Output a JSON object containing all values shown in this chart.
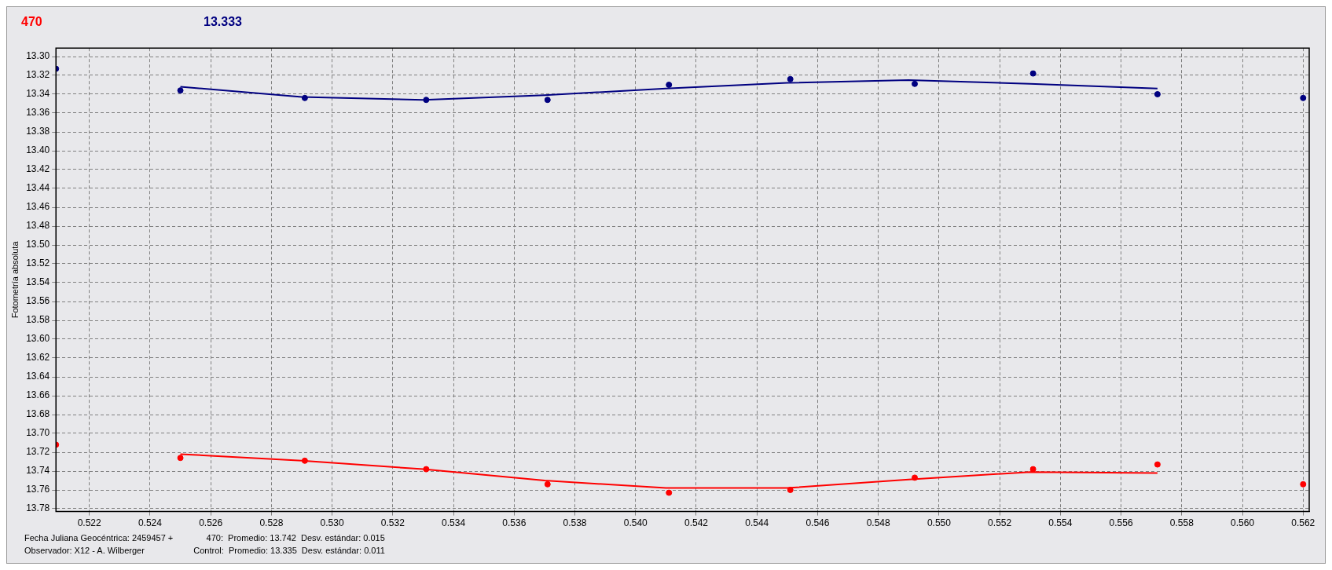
{
  "chart_data": {
    "type": "scatter",
    "ylabel": "Fotometría absoluta",
    "annotations": [
      "Fecha Juliana Geocéntrica: 2459457 +",
      "Observador: X12 - A. Wilberger",
      "470:  Promedio: 13.742  Desv. estándar: 0.015",
      "Control:  Promedio: 13.335  Desv. estándar: 0.011"
    ],
    "x": [
      0.5209,
      0.525,
      0.5291,
      0.5331,
      0.5371,
      0.5411,
      0.5451,
      0.5492,
      0.5531,
      0.5572,
      0.562
    ],
    "series": [
      {
        "name": "470",
        "marker": "circle",
        "color": "#ff0000",
        "values": [
          13.712,
          13.726,
          13.729,
          13.738,
          13.754,
          13.763,
          13.76,
          13.747,
          13.738,
          13.733,
          13.754
        ]
      },
      {
        "name": "13.333",
        "marker": "circle",
        "color": "#000080",
        "values": [
          13.313,
          13.336,
          13.344,
          13.346,
          13.346,
          13.33,
          13.324,
          13.329,
          13.318,
          13.34,
          13.344
        ]
      },
      {
        "type": "line",
        "color": "#ff0000",
        "x": [
          0.525,
          0.529,
          0.533,
          0.537,
          0.541,
          0.545,
          0.549,
          0.553,
          0.5572
        ],
        "values": [
          13.722,
          13.729,
          13.738,
          13.75,
          13.758,
          13.758,
          13.749,
          13.741,
          13.742
        ]
      },
      {
        "type": "line",
        "color": "#000080",
        "x": [
          0.525,
          0.529,
          0.533,
          0.537,
          0.541,
          0.545,
          0.549,
          0.553,
          0.5572
        ],
        "values": [
          13.332,
          13.343,
          13.346,
          13.341,
          13.334,
          13.328,
          13.325,
          13.329,
          13.334
        ]
      }
    ],
    "xlim": [
      0.5209,
      0.5622
    ],
    "ylim": [
      13.783,
      13.291
    ],
    "xticks": [
      0.522,
      0.524,
      0.526,
      0.528,
      {
        "value": 0.53,
        "label": "0.530"
      },
      0.532,
      0.534,
      0.536,
      0.538,
      {
        "value": 0.54,
        "label": "0.540"
      },
      0.542,
      0.544,
      0.546,
      0.548,
      {
        "value": 0.55,
        "label": "0.550"
      },
      0.552,
      0.554,
      0.556,
      0.558,
      {
        "value": 0.56,
        "label": "0.560"
      },
      0.562
    ],
    "yticks": [
      {
        "value": 13.3,
        "label": "13.30"
      },
      13.32,
      13.34,
      13.36,
      13.38,
      {
        "value": 13.4,
        "label": "13.40"
      },
      13.42,
      13.44,
      13.46,
      13.48,
      {
        "value": 13.5,
        "label": "13.50"
      },
      13.52,
      13.54,
      13.56,
      13.58,
      {
        "value": 13.6,
        "label": "13.60"
      },
      13.62,
      13.64,
      13.66,
      13.68,
      {
        "value": 13.7,
        "label": "13.70"
      },
      13.72,
      13.74,
      13.76,
      13.78
    ],
    "grid": true,
    "legend": "top left"
  }
}
